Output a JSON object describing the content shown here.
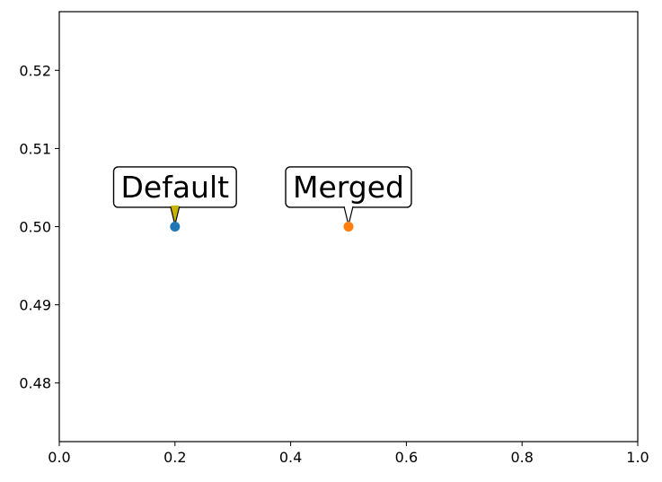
{
  "chart_data": {
    "type": "scatter",
    "title": "",
    "xlabel": "",
    "ylabel": "",
    "xlim": [
      0.0,
      1.0
    ],
    "ylim": [
      0.4725,
      0.5275
    ],
    "xticks": [
      0.0,
      0.2,
      0.4,
      0.6,
      0.8,
      1.0
    ],
    "xtick_labels": [
      "0.0",
      "0.2",
      "0.4",
      "0.6",
      "0.8",
      "1.0"
    ],
    "yticks": [
      0.48,
      0.49,
      0.5,
      0.51,
      0.52
    ],
    "ytick_labels": [
      "0.48",
      "0.49",
      "0.50",
      "0.51",
      "0.52"
    ],
    "grid": false,
    "series": [
      {
        "x": [
          0.2
        ],
        "y": [
          0.5
        ],
        "color": "#1f77b4"
      },
      {
        "x": [
          0.5
        ],
        "y": [
          0.5
        ],
        "color": "#ff7f0e"
      }
    ],
    "annotations": [
      {
        "text": "Default",
        "x": 0.2,
        "y": 0.5,
        "text_x": 0.2,
        "text_y": 0.505,
        "pointer_color": "#c8b400"
      },
      {
        "text": "Merged",
        "x": 0.5,
        "y": 0.5,
        "text_x": 0.5,
        "text_y": 0.505,
        "pointer_color": "#ffffff"
      }
    ]
  }
}
